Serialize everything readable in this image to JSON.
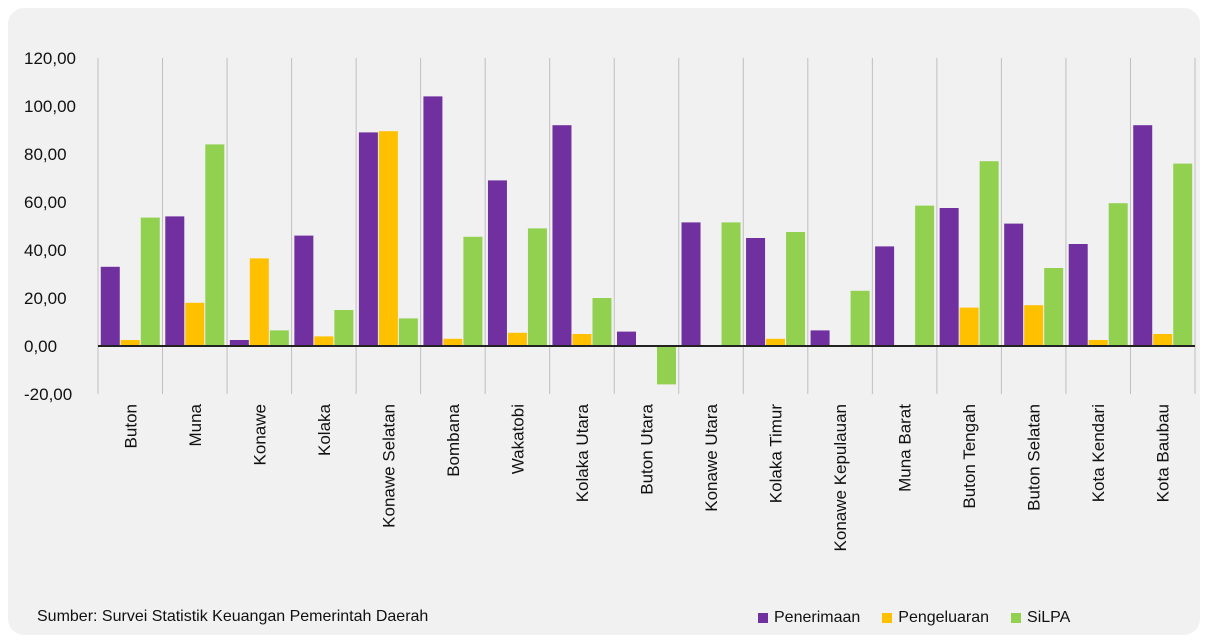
{
  "source_note": "Sumber: Survei Statistik Keuangan  Pemerintah Daerah",
  "colors": {
    "penerimaan": "#7030a0",
    "pengeluaran": "#ffc000",
    "silpa": "#92d050"
  },
  "chart_data": {
    "type": "bar",
    "title": "",
    "xlabel": "",
    "ylabel": "",
    "ylim": [
      -20,
      120
    ],
    "yticks": [
      "120,00",
      "100,00",
      "80,00",
      "60,00",
      "40,00",
      "20,00",
      "0,00",
      "-20,00"
    ],
    "legend_position": "bottom-right",
    "grid": "vertical category separators",
    "categories": [
      "Buton",
      "Muna",
      "Konawe",
      "Kolaka",
      "Konawe Selatan",
      "Bombana",
      "Wakatobi",
      "Kolaka Utara",
      "Buton Utara",
      "Konawe Utara",
      "Kolaka Timur",
      "Konawe Kepulauan",
      "Muna Barat",
      "Buton Tengah",
      "Buton Selatan",
      "Kota Kendari",
      "Kota Baubau"
    ],
    "series": [
      {
        "name": "Penerimaan",
        "values": [
          33,
          54,
          2.5,
          46,
          89,
          104,
          69,
          92,
          6,
          51.5,
          45,
          6.5,
          41.5,
          57.5,
          51,
          42.5,
          92
        ]
      },
      {
        "name": "Pengeluaran",
        "values": [
          2.5,
          18,
          36.5,
          4,
          89.5,
          3,
          5.5,
          5,
          0,
          0,
          3,
          0,
          0,
          16,
          17,
          2.5,
          5
        ]
      },
      {
        "name": "SiLPA",
        "values": [
          53.5,
          84,
          6.5,
          15,
          11.5,
          45.5,
          49,
          20,
          -16,
          51.5,
          47.5,
          23,
          58.5,
          77,
          32.5,
          59.5,
          76
        ]
      }
    ]
  }
}
